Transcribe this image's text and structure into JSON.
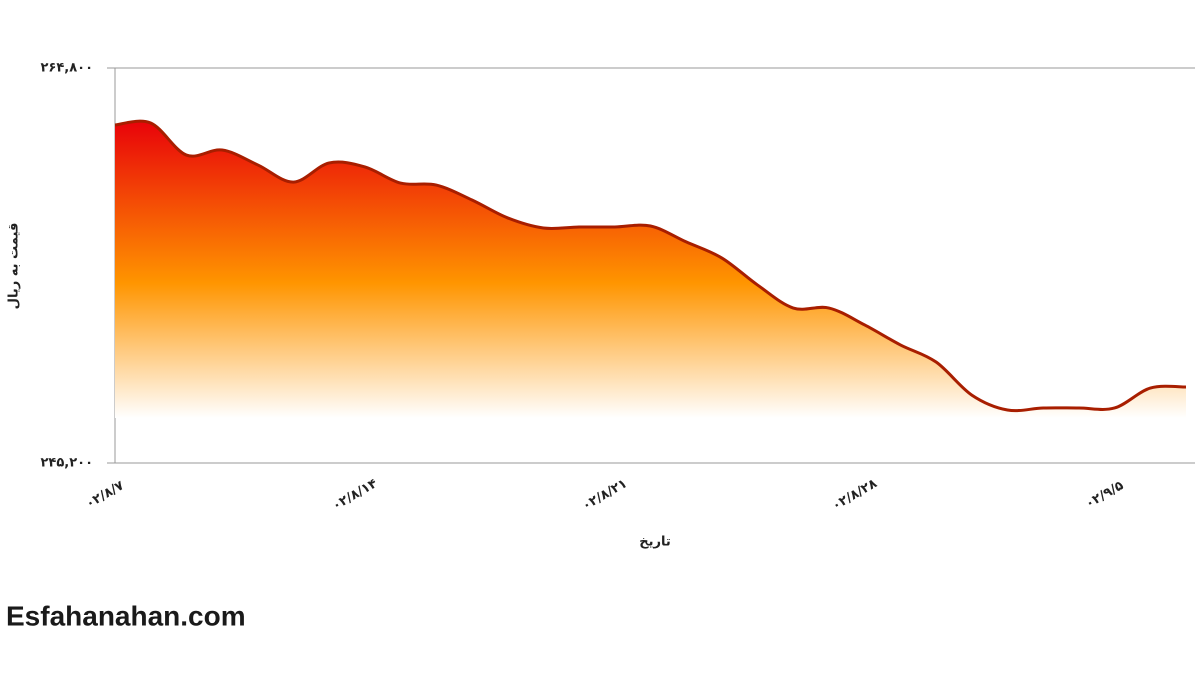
{
  "chart_data": {
    "type": "area",
    "y_label": "قیمت به ریال",
    "x_label": "تاریخ",
    "categories": [
      "۰۲/۸/۷",
      null,
      null,
      null,
      null,
      null,
      null,
      "۰۲/۸/۱۴",
      null,
      null,
      null,
      null,
      null,
      null,
      "۰۲/۸/۲۱",
      null,
      null,
      null,
      null,
      null,
      null,
      "۰۲/۸/۲۸",
      null,
      null,
      null,
      null,
      null,
      null,
      "۰۲/۹/۵",
      null,
      null
    ],
    "series": [
      {
        "color": "#a81e00",
        "values": [
          261970,
          262070,
          260480,
          260730,
          259990,
          259140,
          260090,
          259890,
          259090,
          258990,
          258250,
          257360,
          256860,
          256910,
          256910,
          256960,
          256170,
          255370,
          254030,
          252890,
          252890,
          252050,
          251060,
          250210,
          248570,
          247830,
          247930,
          247930,
          247930,
          248920,
          248970
        ]
      }
    ],
    "ylim": [
      245200,
      264800
    ],
    "yticks": [
      {
        "value": 245200,
        "label": "۲۴۵,۲۰۰"
      },
      {
        "value": 264800,
        "label": "۲۶۴,۸۰۰"
      }
    ],
    "grid": true,
    "gradient": [
      "#e8000a",
      "#ff9500",
      "#ffffff"
    ],
    "watermark": "Esfahanahan.com"
  }
}
